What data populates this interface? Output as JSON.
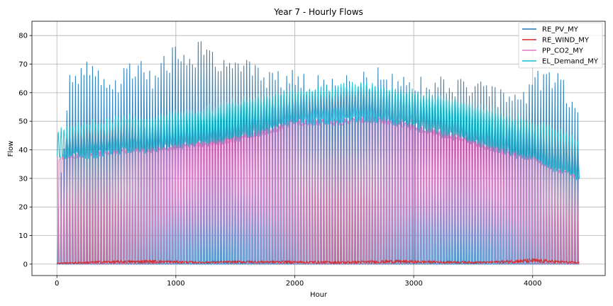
{
  "chart_data": {
    "type": "line",
    "title": "Year 7 - Hourly Flows",
    "xlabel": "Hour",
    "ylabel": "Flow",
    "xlim": [
      -210,
      4610
    ],
    "ylim": [
      -4,
      85
    ],
    "xticks": [
      0,
      1000,
      2000,
      3000,
      4000
    ],
    "yticks": [
      0,
      10,
      20,
      30,
      40,
      50,
      60,
      70,
      80
    ],
    "grid": true,
    "legend_position": "top-right",
    "x_range": [
      0,
      4392
    ],
    "period_hours": 24,
    "series": [
      {
        "name": "RE_PV_MY",
        "color": "#1f77b4",
        "pattern": "daily solar cycle: 0 at night, daily peak values",
        "anchors_x": [
          0,
          100,
          200,
          300,
          400,
          500,
          600,
          700,
          800,
          900,
          1000,
          1100,
          1200,
          1300,
          1400,
          1500,
          1600,
          1700,
          1800,
          1900,
          2000,
          2100,
          2200,
          2300,
          2400,
          2500,
          2600,
          2700,
          2800,
          2900,
          3000,
          3100,
          3200,
          3300,
          3400,
          3500,
          3600,
          3700,
          3800,
          3900,
          4000,
          4100,
          4200,
          4300,
          4392
        ],
        "peak_envelope": [
          14,
          66,
          70,
          73,
          67,
          66,
          74,
          72,
          69,
          73,
          77,
          76,
          79,
          76,
          74,
          74,
          73,
          71,
          67,
          68,
          69,
          67,
          67,
          67,
          66,
          67,
          68,
          69,
          67,
          67,
          66,
          66,
          66,
          65,
          65,
          66,
          65,
          62,
          63,
          58,
          68,
          68,
          69,
          62,
          55
        ]
      },
      {
        "name": "RE_WIND_MY",
        "color": "#d62728",
        "pattern": "low, fluctuating near zero",
        "anchors_x": [
          0,
          400,
          800,
          1200,
          1600,
          2000,
          2400,
          2800,
          3200,
          3600,
          4000,
          4392
        ],
        "level": [
          0.5,
          1.2,
          1.5,
          1.0,
          1.3,
          1.2,
          1.0,
          1.5,
          1.2,
          1.0,
          2.0,
          0.8
        ]
      },
      {
        "name": "PP_CO2_MY",
        "color": "#e377c2",
        "pattern": "daily cycle: night peak, midday minimum",
        "anchors_x": [
          0,
          200,
          400,
          600,
          800,
          1000,
          1200,
          1400,
          1600,
          1800,
          2000,
          2200,
          2400,
          2600,
          2800,
          3000,
          3200,
          3400,
          3600,
          3800,
          4000,
          4200,
          4392
        ],
        "peak_envelope": [
          38,
          39,
          40,
          41,
          41,
          42,
          43,
          44,
          46,
          48,
          51,
          51,
          51,
          52,
          51,
          49,
          47,
          45,
          42,
          40,
          38,
          34,
          31
        ]
      },
      {
        "name": "EL_Demand_MY",
        "color": "#17becf",
        "pattern": "daily cycle between a nightly trough and a daytime peak",
        "anchors_x": [
          0,
          200,
          400,
          600,
          800,
          1000,
          1200,
          1400,
          1600,
          1800,
          2000,
          2200,
          2400,
          2600,
          2800,
          3000,
          3200,
          3400,
          3600,
          3800,
          4000,
          4200,
          4392
        ],
        "high": [
          46,
          49,
          50,
          51,
          52,
          53,
          54,
          56,
          58,
          59,
          60,
          61,
          62,
          63,
          62,
          60,
          59,
          57,
          55,
          52,
          50,
          47,
          44
        ],
        "low": [
          37,
          38,
          39,
          40,
          40,
          41,
          42,
          43,
          45,
          47,
          50,
          50,
          51,
          51,
          50,
          48,
          46,
          44,
          41,
          39,
          37,
          33,
          30
        ]
      }
    ]
  }
}
